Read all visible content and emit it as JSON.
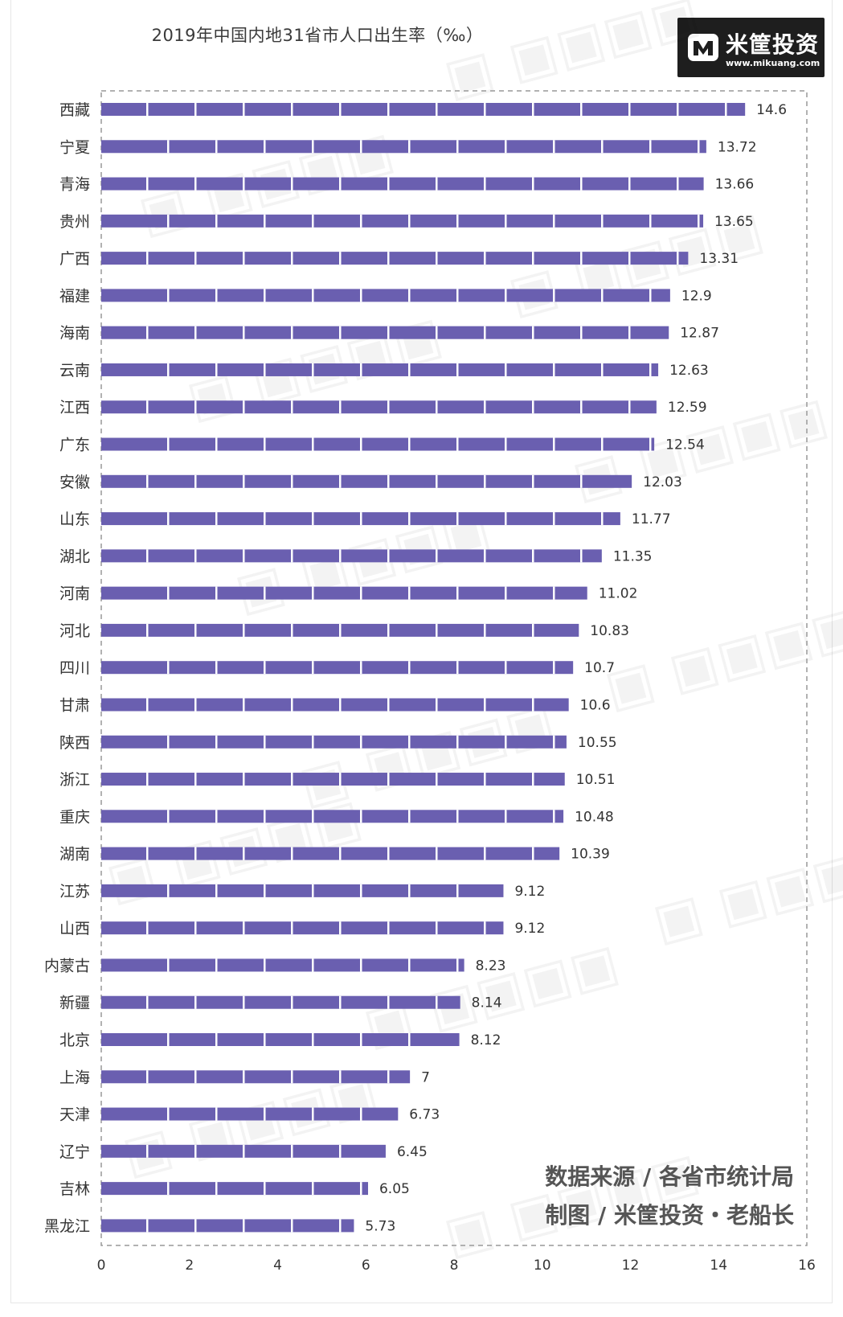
{
  "chart_data": {
    "type": "bar",
    "orientation": "horizontal",
    "title": "2019年中国内地31省市人口出生率（‰）",
    "xlabel": "",
    "ylabel": "",
    "xlim": [
      0,
      16
    ],
    "xticks": [
      0,
      2,
      4,
      6,
      8,
      10,
      12,
      14,
      16
    ],
    "grid": false,
    "bar_color": "#6a5fb0",
    "categories": [
      "西藏",
      "宁夏",
      "青海",
      "贵州",
      "广西",
      "福建",
      "海南",
      "云南",
      "江西",
      "广东",
      "安徽",
      "山东",
      "湖北",
      "河南",
      "河北",
      "四川",
      "甘肃",
      "陕西",
      "浙江",
      "重庆",
      "湖南",
      "江苏",
      "山西",
      "内蒙古",
      "新疆",
      "北京",
      "上海",
      "天津",
      "辽宁",
      "吉林",
      "黑龙江"
    ],
    "values": [
      14.6,
      13.72,
      13.66,
      13.65,
      13.31,
      12.9,
      12.87,
      12.63,
      12.59,
      12.54,
      12.03,
      11.77,
      11.35,
      11.02,
      10.83,
      10.7,
      10.6,
      10.55,
      10.51,
      10.48,
      10.39,
      9.12,
      9.12,
      8.23,
      8.14,
      8.12,
      7,
      6.73,
      6.45,
      6.05,
      5.73
    ],
    "value_labels": [
      "14.6",
      "13.72",
      "13.66",
      "13.65",
      "13.31",
      "12.9",
      "12.87",
      "12.63",
      "12.59",
      "12.54",
      "12.03",
      "11.77",
      "11.35",
      "11.02",
      "10.83",
      "10.7",
      "10.6",
      "10.55",
      "10.51",
      "10.48",
      "10.39",
      "9.12",
      "9.12",
      "8.23",
      "8.14",
      "8.12",
      "7",
      "6.73",
      "6.45",
      "6.05",
      "5.73"
    ]
  },
  "logo": {
    "name": "米筐投资",
    "url": "www.mikuang.com",
    "icon": "mikuang-logo-icon"
  },
  "source": {
    "line1": "数据来源 / 各省市统计局",
    "line2": "制图 / 米筐投资・老船长"
  }
}
